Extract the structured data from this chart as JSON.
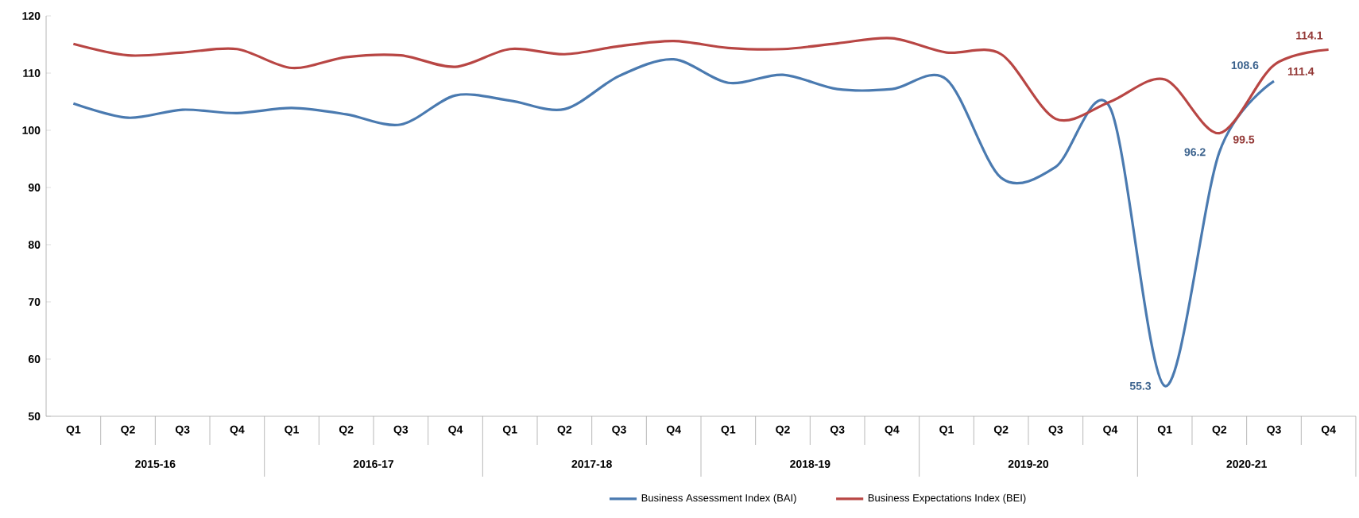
{
  "chart_data": {
    "type": "line",
    "categories": [
      "Q1",
      "Q2",
      "Q3",
      "Q4",
      "Q1",
      "Q2",
      "Q3",
      "Q4",
      "Q1",
      "Q2",
      "Q3",
      "Q4",
      "Q1",
      "Q2",
      "Q3",
      "Q4",
      "Q1",
      "Q2",
      "Q3",
      "Q4",
      "Q1",
      "Q2",
      "Q3",
      "Q4"
    ],
    "annotations": [
      "2015-16",
      "2016-17",
      "2017-18",
      "2018-19",
      "2019-20",
      "2020-21"
    ],
    "series": [
      {
        "name": "Business Assessment Index (BAI)",
        "color": "#4a7ab0",
        "values": [
          104.7,
          102.2,
          103.6,
          103.0,
          103.9,
          102.8,
          101.0,
          106.1,
          105.2,
          103.7,
          109.5,
          112.4,
          108.3,
          109.7,
          107.2,
          107.2,
          108.9,
          91.7,
          93.6,
          103.9,
          55.3,
          96.2,
          108.6,
          null
        ],
        "value_labels": [
          null,
          null,
          null,
          null,
          null,
          null,
          null,
          null,
          null,
          null,
          null,
          null,
          null,
          null,
          null,
          null,
          null,
          null,
          null,
          null,
          "55.3",
          "96.2",
          "108.6",
          null
        ]
      },
      {
        "name": "Business Expectations Index (BEI)",
        "color": "#b84644",
        "values": [
          115.1,
          113.1,
          113.6,
          114.2,
          110.9,
          112.8,
          113.1,
          111.1,
          114.2,
          113.3,
          114.7,
          115.6,
          114.4,
          114.2,
          115.2,
          116.1,
          113.6,
          113.3,
          102.0,
          105.0,
          108.9,
          99.5,
          111.4,
          114.1
        ],
        "value_labels": [
          null,
          null,
          null,
          null,
          null,
          null,
          null,
          null,
          null,
          null,
          null,
          null,
          null,
          null,
          null,
          null,
          null,
          null,
          null,
          null,
          null,
          "99.5",
          "111.4",
          "114.1"
        ]
      }
    ],
    "ylim": [
      50,
      120
    ],
    "yticks": [
      50,
      60,
      70,
      80,
      90,
      100,
      110,
      120
    ],
    "grid": false,
    "legend": "bottom",
    "marker": "none",
    "line_style": "solid"
  }
}
